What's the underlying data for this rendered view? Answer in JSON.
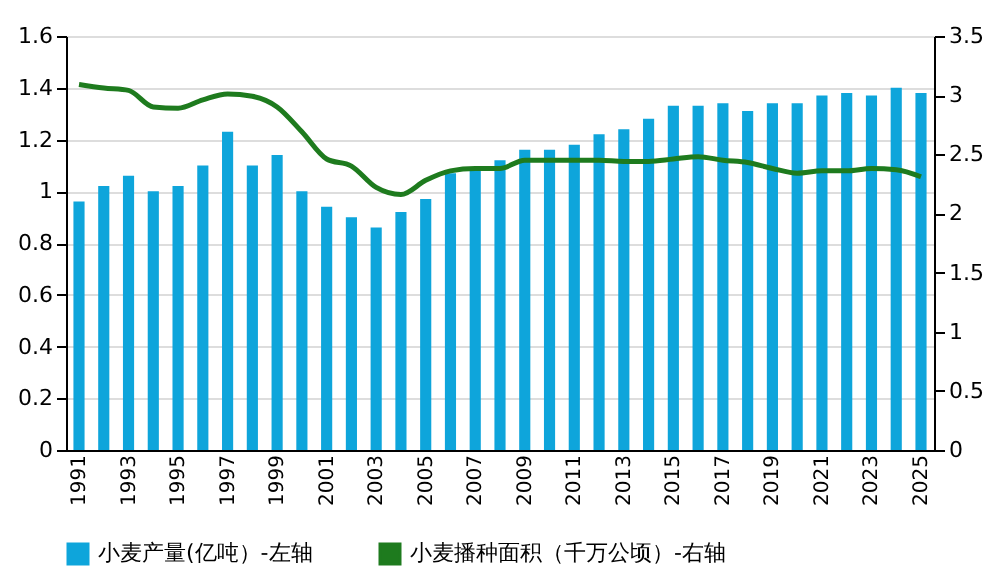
{
  "chart_data": {
    "type": "bar",
    "categories": [
      "1991",
      null,
      "1993",
      null,
      "1995",
      null,
      "1997",
      null,
      "1999",
      null,
      "2001",
      null,
      "2003",
      null,
      "2005",
      null,
      "2007",
      null,
      "2009",
      null,
      "2011",
      null,
      "2013",
      null,
      "2015",
      null,
      "2017",
      null,
      "2019",
      null,
      "2021",
      null,
      "2023",
      null,
      "2025"
    ],
    "series": [
      {
        "name": "小麦产量(亿吨）-左轴",
        "color": "#0ea5db",
        "values": [
          0.96,
          1.02,
          1.06,
          1.0,
          1.02,
          1.1,
          1.23,
          1.1,
          1.14,
          1.0,
          0.94,
          0.9,
          0.86,
          0.92,
          0.97,
          1.07,
          1.08,
          1.12,
          1.16,
          1.16,
          1.18,
          1.22,
          1.24,
          1.28,
          1.33,
          1.33,
          1.34,
          1.31,
          1.34,
          1.34,
          1.37,
          1.38,
          1.37,
          1.4,
          1.38
        ]
      },
      {
        "name": "小麦播种面积（千万公顷）-右轴",
        "type": "line",
        "axis": "y2",
        "color": "#1e7b1e",
        "values": [
          3.09,
          3.06,
          3.04,
          2.9,
          2.89,
          2.96,
          3.01,
          2.99,
          2.9,
          2.69,
          2.46,
          2.4,
          2.22,
          2.16,
          2.28,
          2.36,
          2.38,
          2.38,
          2.45,
          2.45,
          2.45,
          2.45,
          2.44,
          2.44,
          2.46,
          2.48,
          2.45,
          2.43,
          2.38,
          2.34,
          2.36,
          2.36,
          2.38,
          2.37,
          2.31
        ]
      }
    ],
    "ylim": [
      0,
      1.6
    ],
    "yticks": [
      0,
      0.2,
      0.4,
      0.6,
      0.8,
      1,
      1.2,
      1.4,
      1.6
    ],
    "y2lim": [
      0,
      3.5
    ],
    "y2ticks": [
      0,
      0.5,
      1,
      1.5,
      2,
      2.5,
      3,
      3.5
    ],
    "grid": "y",
    "legend": "bottom",
    "marker": "none",
    "line_style": "solid"
  }
}
